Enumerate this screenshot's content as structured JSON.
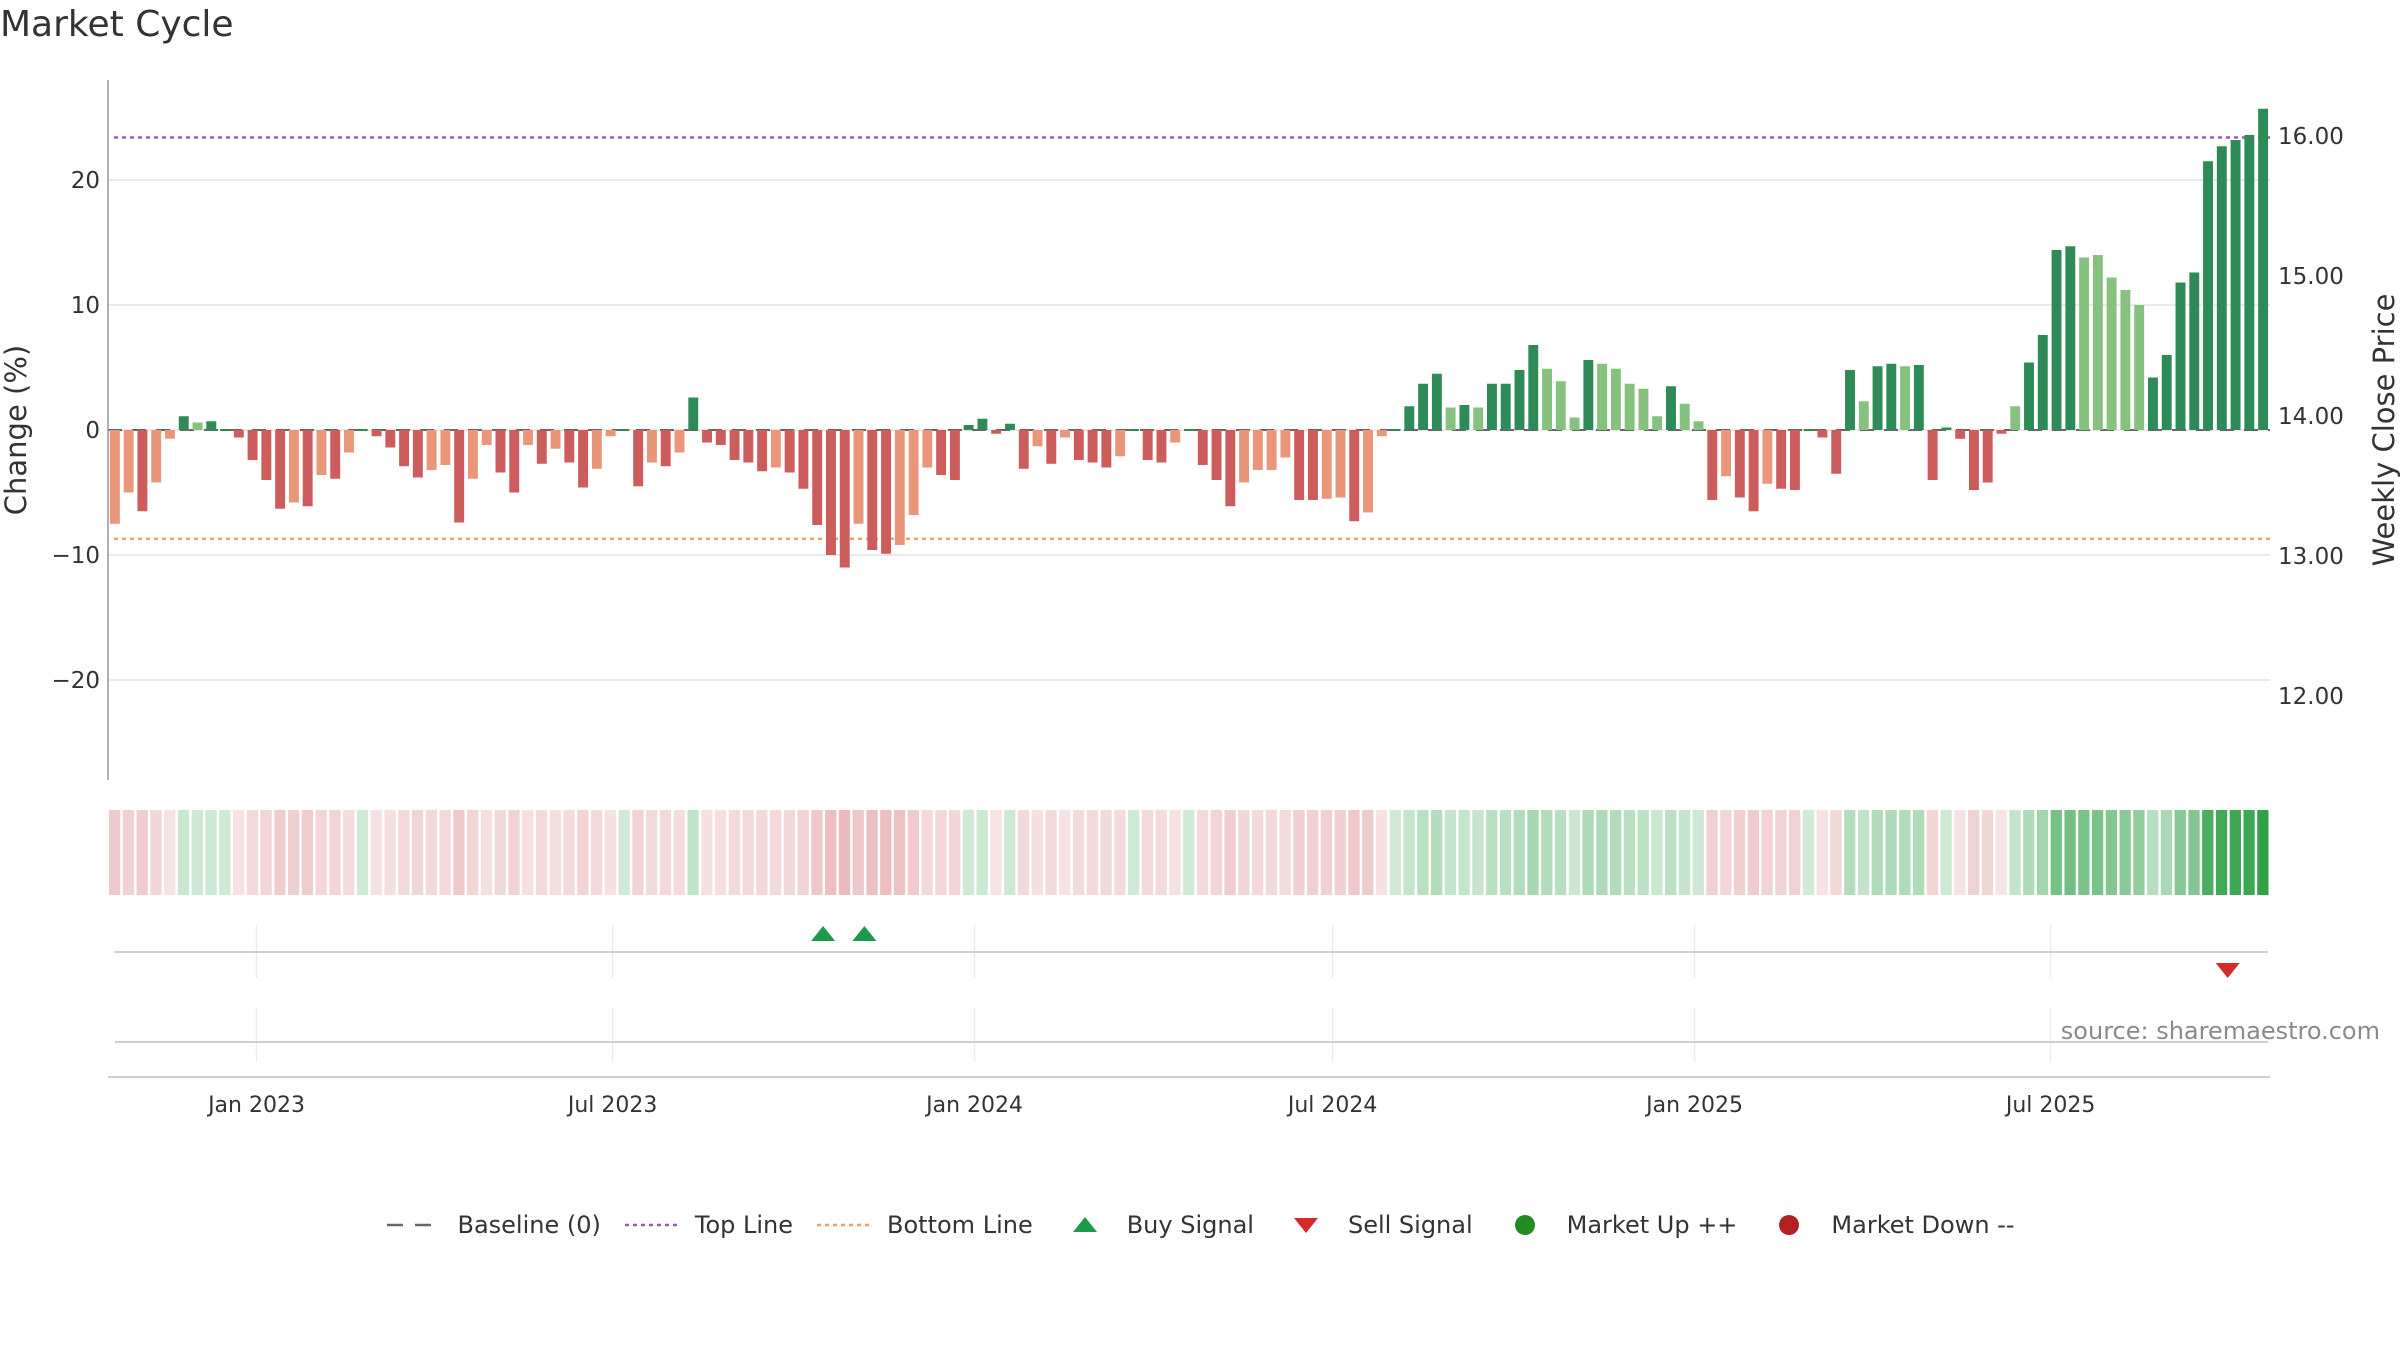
{
  "title": "Market Cycle",
  "source": "source: sharemaestro.com",
  "colors": {
    "up_strong": "#2e8b57",
    "up_weak": "#86c17f",
    "down_strong": "#cd5c5c",
    "down_weak": "#e9967a",
    "top_line": "#9b59b6",
    "bottom_line": "#f0a060",
    "buy": "#1a9a4a",
    "sell": "#d42a2a",
    "market_up": "#228b22",
    "market_down": "#b22222"
  },
  "chart_data": {
    "type": "bar",
    "left_axis_label": "Change (%)",
    "right_axis_label": "Weekly Close Price",
    "left_ylim": [
      -28,
      28
    ],
    "right_ylim": [
      11.4,
      16.4
    ],
    "left_ticks": [
      20,
      10,
      0,
      -10,
      -20
    ],
    "left_tick_labels": [
      "20",
      "10",
      "0",
      "−10",
      "−20"
    ],
    "right_ticks": [
      16,
      15,
      14,
      13,
      12
    ],
    "right_tick_labels": [
      "16.00",
      "15.00",
      "14.00",
      "13.00",
      "12.00"
    ],
    "top_line": 23.4,
    "bottom_line": -8.7,
    "baseline": 0,
    "x_start": "2022-10-21",
    "date_ticks": [
      "2023-01-01",
      "2023-07-01",
      "2024-01-01",
      "2024-07-01",
      "2025-01-01",
      "2025-07-01"
    ],
    "date_tick_labels": [
      "Jan 2023",
      "Jul 2023",
      "Jan 2024",
      "Jul 2024",
      "Jan 2025",
      "Jul 2025"
    ],
    "values": [
      -7.5,
      -5.0,
      -6.5,
      -4.2,
      -0.7,
      1.1,
      0.6,
      0.7,
      0.0,
      -0.6,
      -2.4,
      -4.0,
      -6.3,
      -5.8,
      -6.1,
      -3.6,
      -3.9,
      -1.8,
      0.0,
      -0.5,
      -1.4,
      -2.9,
      -3.8,
      -3.2,
      -2.8,
      -7.4,
      -3.9,
      -1.2,
      -3.4,
      -5.0,
      -1.2,
      -2.7,
      -1.5,
      -2.6,
      -4.6,
      -3.1,
      -0.5,
      0.0,
      -4.5,
      -2.6,
      -2.9,
      -1.8,
      2.6,
      -1.0,
      -1.2,
      -2.4,
      -2.6,
      -3.3,
      -3.0,
      -3.4,
      -4.7,
      -7.6,
      -10.0,
      -11.0,
      -7.5,
      -9.6,
      -9.9,
      -9.2,
      -6.8,
      -3.0,
      -3.6,
      -4.0,
      0.4,
      0.9,
      -0.3,
      0.5,
      -3.1,
      -1.3,
      -2.7,
      -0.6,
      -2.4,
      -2.6,
      -3.0,
      -2.1,
      0.0,
      -2.4,
      -2.6,
      -1.0,
      0.0,
      -2.8,
      -4.0,
      -6.1,
      -4.2,
      -3.2,
      -3.2,
      -2.2,
      -5.6,
      -5.6,
      -5.5,
      -5.4,
      -7.3,
      -6.6,
      -0.5,
      0.0,
      1.9,
      3.7,
      4.5,
      1.8,
      2.0,
      1.8,
      3.7,
      3.7,
      4.8,
      6.8,
      4.9,
      3.9,
      1.0,
      5.6,
      5.3,
      4.9,
      3.7,
      3.3,
      1.1,
      3.5,
      2.1,
      0.7,
      -5.6,
      -3.7,
      -5.4,
      -6.5,
      -4.3,
      -4.7,
      -4.8,
      0.0,
      -0.6,
      -3.5,
      4.8,
      2.3,
      5.1,
      5.3,
      5.1,
      5.2,
      -4.0,
      0.2,
      -0.7,
      -4.8,
      -4.2,
      -0.3,
      1.9,
      5.4,
      7.6,
      14.4,
      14.7,
      13.8,
      14.0,
      12.2,
      11.2,
      10.0,
      4.2,
      6.0,
      11.8,
      12.6,
      21.5,
      22.7,
      23.2,
      23.6,
      25.7
    ],
    "categories": [
      "weak",
      "weak",
      "strong",
      "weak",
      "weak",
      "strong",
      "weak",
      "strong",
      "strong",
      "strong",
      "strong",
      "strong",
      "strong",
      "weak",
      "strong",
      "weak",
      "strong",
      "weak",
      "strong",
      "strong",
      "strong",
      "strong",
      "strong",
      "weak",
      "weak",
      "strong",
      "weak",
      "weak",
      "strong",
      "strong",
      "weak",
      "strong",
      "weak",
      "strong",
      "strong",
      "weak",
      "weak",
      "strong",
      "strong",
      "weak",
      "strong",
      "weak",
      "strong",
      "strong",
      "strong",
      "strong",
      "strong",
      "strong",
      "weak",
      "strong",
      "strong",
      "strong",
      "strong",
      "strong",
      "weak",
      "strong",
      "strong",
      "weak",
      "weak",
      "weak",
      "strong",
      "strong",
      "strong",
      "strong",
      "strong",
      "strong",
      "strong",
      "weak",
      "strong",
      "weak",
      "strong",
      "strong",
      "strong",
      "weak",
      "strong",
      "strong",
      "strong",
      "weak",
      "strong",
      "strong",
      "strong",
      "strong",
      "weak",
      "weak",
      "weak",
      "weak",
      "strong",
      "strong",
      "weak",
      "weak",
      "strong",
      "weak",
      "weak",
      "strong",
      "strong",
      "strong",
      "strong",
      "weak",
      "strong",
      "weak",
      "strong",
      "strong",
      "strong",
      "strong",
      "weak",
      "weak",
      "weak",
      "strong",
      "weak",
      "weak",
      "weak",
      "weak",
      "weak",
      "strong",
      "weak",
      "weak",
      "strong",
      "weak",
      "strong",
      "strong",
      "weak",
      "strong",
      "strong",
      "strong",
      "strong",
      "strong",
      "strong",
      "weak",
      "strong",
      "strong",
      "weak",
      "strong",
      "strong",
      "strong",
      "strong",
      "strong",
      "strong",
      "strong",
      "weak",
      "strong",
      "strong",
      "strong",
      "strong",
      "weak",
      "weak",
      "weak",
      "weak",
      "weak",
      "strong",
      "strong",
      "strong",
      "strong",
      "strong",
      "strong",
      "strong",
      "strong",
      "strong"
    ],
    "buy_signals": [
      "2023-10-16",
      "2023-11-06"
    ],
    "sell_signals": [
      "2025-09-29"
    ]
  },
  "legend": [
    {
      "label": "Baseline (0)",
      "swatch": "baseline"
    },
    {
      "label": "Top Line",
      "swatch": "top"
    },
    {
      "label": "Bottom Line",
      "swatch": "bottom"
    },
    {
      "label": "Buy Signal",
      "swatch": "buy"
    },
    {
      "label": "Sell Signal",
      "swatch": "sell"
    },
    {
      "label": "Market Up ++",
      "swatch": "market_up"
    },
    {
      "label": "Market Down --",
      "swatch": "market_down"
    }
  ]
}
